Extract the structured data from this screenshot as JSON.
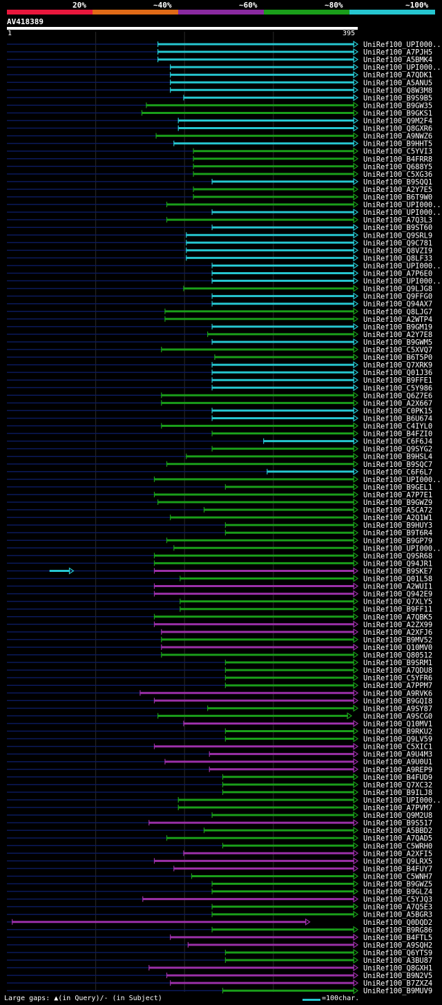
{
  "legend": [
    {
      "label": "20%",
      "color": "#e8173c"
    },
    {
      "label": "~40%",
      "color": "#e06a17"
    },
    {
      "label": "~60%",
      "color": "#8a2aa0"
    },
    {
      "label": "~80%",
      "color": "#1a9e1a"
    },
    {
      "label": "~100%",
      "color": "#26c6d0"
    }
  ],
  "query": {
    "name": "AV418389",
    "start": "1",
    "end": "395"
  },
  "colors": {
    "cyan": "#26c6d0",
    "green": "#1a9e1a",
    "purple": "#9b30a8",
    "navy": "#0b1a5c"
  },
  "footer": {
    "gaps_text": "Large gaps: ▲(in Query)/- (in Subject)",
    "scale_text": "=100char."
  },
  "hits": [
    {
      "name": "UniRef100_UPI000..",
      "start": 170,
      "end": 395,
      "color": "cyan"
    },
    {
      "name": "UniRef100_A7PJH5",
      "start": 170,
      "end": 395,
      "color": "cyan"
    },
    {
      "name": "UniRef100_A5BMK4",
      "start": 170,
      "end": 395,
      "color": "cyan"
    },
    {
      "name": "UniRef100_UPI000..",
      "start": 184,
      "end": 395,
      "color": "cyan"
    },
    {
      "name": "UniRef100_A7QDK1",
      "start": 184,
      "end": 395,
      "color": "cyan"
    },
    {
      "name": "UniRef100_A5ANU5",
      "start": 184,
      "end": 395,
      "color": "cyan"
    },
    {
      "name": "UniRef100_Q8W3M8",
      "start": 184,
      "end": 395,
      "color": "cyan"
    },
    {
      "name": "UniRef100_B9S9B5",
      "start": 199,
      "end": 395,
      "color": "cyan"
    },
    {
      "name": "UniRef100_B9GW35",
      "start": 157,
      "end": 395,
      "color": "green"
    },
    {
      "name": "UniRef100_B9GKS1",
      "start": 152,
      "end": 395,
      "color": "green"
    },
    {
      "name": "UniRef100_Q9M2F4",
      "start": 193,
      "end": 395,
      "color": "cyan"
    },
    {
      "name": "UniRef100_Q8GXR6",
      "start": 193,
      "end": 395,
      "color": "cyan"
    },
    {
      "name": "UniRef100_A9NWZ6",
      "start": 168,
      "end": 395,
      "color": "green"
    },
    {
      "name": "UniRef100_B9HHT5",
      "start": 188,
      "end": 395,
      "color": "cyan"
    },
    {
      "name": "UniRef100_C5YVI3",
      "start": 210,
      "end": 395,
      "color": "green"
    },
    {
      "name": "UniRef100_B4FRR8",
      "start": 210,
      "end": 395,
      "color": "green"
    },
    {
      "name": "UniRef100_Q688Y5",
      "start": 210,
      "end": 395,
      "color": "green"
    },
    {
      "name": "UniRef100_C5XG36",
      "start": 210,
      "end": 395,
      "color": "green"
    },
    {
      "name": "UniRef100_B9SQQ1",
      "start": 231,
      "end": 395,
      "color": "cyan"
    },
    {
      "name": "UniRef100_A2Y7E5",
      "start": 210,
      "end": 395,
      "color": "green"
    },
    {
      "name": "UniRef100_B6T9W0",
      "start": 210,
      "end": 395,
      "color": "green"
    },
    {
      "name": "UniRef100_UPI000..",
      "start": 180,
      "end": 395,
      "color": "green"
    },
    {
      "name": "UniRef100_UPI000..",
      "start": 231,
      "end": 395,
      "color": "cyan"
    },
    {
      "name": "UniRef100_A7Q3L3",
      "start": 180,
      "end": 395,
      "color": "green"
    },
    {
      "name": "UniRef100_B9ST60",
      "start": 231,
      "end": 395,
      "color": "cyan"
    },
    {
      "name": "UniRef100_Q9SRL9",
      "start": 202,
      "end": 395,
      "color": "cyan"
    },
    {
      "name": "UniRef100_Q9C781",
      "start": 202,
      "end": 395,
      "color": "cyan"
    },
    {
      "name": "UniRef100_Q8VZI9",
      "start": 202,
      "end": 395,
      "color": "cyan"
    },
    {
      "name": "UniRef100_Q8LF33",
      "start": 202,
      "end": 395,
      "color": "cyan"
    },
    {
      "name": "UniRef100_UPI000..",
      "start": 231,
      "end": 395,
      "color": "cyan"
    },
    {
      "name": "UniRef100_A7P6E0",
      "start": 231,
      "end": 395,
      "color": "cyan"
    },
    {
      "name": "UniRef100_UPI000..",
      "start": 231,
      "end": 395,
      "color": "cyan"
    },
    {
      "name": "UniRef100_Q9LJG8",
      "start": 199,
      "end": 395,
      "color": "green"
    },
    {
      "name": "UniRef100_Q9FFG0",
      "start": 231,
      "end": 395,
      "color": "cyan"
    },
    {
      "name": "UniRef100_Q94AX7",
      "start": 231,
      "end": 395,
      "color": "cyan"
    },
    {
      "name": "UniRef100_Q8LJG7",
      "start": 178,
      "end": 395,
      "color": "green"
    },
    {
      "name": "UniRef100_A2WTP4",
      "start": 178,
      "end": 395,
      "color": "green"
    },
    {
      "name": "UniRef100_B9GM19",
      "start": 231,
      "end": 395,
      "color": "cyan"
    },
    {
      "name": "UniRef100_A2Y7E8",
      "start": 226,
      "end": 395,
      "color": "green"
    },
    {
      "name": "UniRef100_B9GWM5",
      "start": 231,
      "end": 395,
      "color": "cyan"
    },
    {
      "name": "UniRef100_C5XVQ7",
      "start": 174,
      "end": 395,
      "color": "green"
    },
    {
      "name": "UniRef100_B6T5P0",
      "start": 234,
      "end": 395,
      "color": "green"
    },
    {
      "name": "UniRef100_Q7XRK9",
      "start": 231,
      "end": 395,
      "color": "cyan"
    },
    {
      "name": "UniRef100_Q01J36",
      "start": 231,
      "end": 395,
      "color": "cyan"
    },
    {
      "name": "UniRef100_B9FFE1",
      "start": 231,
      "end": 395,
      "color": "cyan"
    },
    {
      "name": "UniRef100_C5Y986",
      "start": 231,
      "end": 395,
      "color": "cyan"
    },
    {
      "name": "UniRef100_Q6Z7E6",
      "start": 174,
      "end": 395,
      "color": "green"
    },
    {
      "name": "UniRef100_A2X667",
      "start": 174,
      "end": 395,
      "color": "green"
    },
    {
      "name": "UniRef100_C0PK15",
      "start": 231,
      "end": 395,
      "color": "cyan"
    },
    {
      "name": "UniRef100_B6U674",
      "start": 231,
      "end": 395,
      "color": "cyan"
    },
    {
      "name": "UniRef100_C4IYL0",
      "start": 174,
      "end": 395,
      "color": "green"
    },
    {
      "name": "UniRef100_B4FZI0",
      "start": 231,
      "end": 395,
      "color": "green"
    },
    {
      "name": "UniRef100_C6F6J4",
      "start": 289,
      "end": 395,
      "color": "cyan"
    },
    {
      "name": "UniRef100_Q9SYG2",
      "start": 231,
      "end": 395,
      "color": "green"
    },
    {
      "name": "UniRef100_B9HSL4",
      "start": 202,
      "end": 395,
      "color": "green"
    },
    {
      "name": "UniRef100_B9SQC7",
      "start": 180,
      "end": 395,
      "color": "green"
    },
    {
      "name": "UniRef100_C6F6L7",
      "start": 293,
      "end": 395,
      "color": "cyan"
    },
    {
      "name": "UniRef100_UPI000..",
      "start": 166,
      "end": 395,
      "color": "green"
    },
    {
      "name": "UniRef100_B9GEL1",
      "start": 246,
      "end": 395,
      "color": "green"
    },
    {
      "name": "UniRef100_A7P7E1",
      "start": 166,
      "end": 395,
      "color": "green"
    },
    {
      "name": "UniRef100_B9GWZ9",
      "start": 170,
      "end": 395,
      "color": "green"
    },
    {
      "name": "UniRef100_A5CA72",
      "start": 222,
      "end": 395,
      "color": "green"
    },
    {
      "name": "UniRef100_A2Q1W1",
      "start": 184,
      "end": 395,
      "color": "green"
    },
    {
      "name": "UniRef100_B9HUY3",
      "start": 246,
      "end": 395,
      "color": "green"
    },
    {
      "name": "UniRef100_B9T6R4",
      "start": 246,
      "end": 395,
      "color": "green"
    },
    {
      "name": "UniRef100_B9GP79",
      "start": 180,
      "end": 395,
      "color": "green"
    },
    {
      "name": "UniRef100_UPI000..",
      "start": 188,
      "end": 395,
      "color": "green"
    },
    {
      "name": "UniRef100_Q9SR68",
      "start": 166,
      "end": 395,
      "color": "green"
    },
    {
      "name": "UniRef100_Q94JR1",
      "start": 166,
      "end": 395,
      "color": "green"
    },
    {
      "name": "UniRef100_B9SKE7",
      "start": 166,
      "end": 395,
      "color": "purple"
    },
    {
      "name": "UniRef100_Q01L58",
      "start": 195,
      "end": 395,
      "color": "green"
    },
    {
      "name": "UniRef100_A2WUI1",
      "start": 166,
      "end": 395,
      "color": "purple"
    },
    {
      "name": "UniRef100_Q942E9",
      "start": 166,
      "end": 395,
      "color": "purple"
    },
    {
      "name": "UniRef100_Q7XLY5",
      "start": 195,
      "end": 395,
      "color": "green"
    },
    {
      "name": "UniRef100_B9FF11",
      "start": 195,
      "end": 395,
      "color": "green"
    },
    {
      "name": "UniRef100_A7QBK5",
      "start": 166,
      "end": 395,
      "color": "green"
    },
    {
      "name": "UniRef100_A2ZX99",
      "start": 166,
      "end": 395,
      "color": "purple"
    },
    {
      "name": "UniRef100_A2XFJ6",
      "start": 174,
      "end": 395,
      "color": "purple"
    },
    {
      "name": "UniRef100_B9MV52",
      "start": 174,
      "end": 395,
      "color": "green"
    },
    {
      "name": "UniRef100_Q10MV0",
      "start": 174,
      "end": 395,
      "color": "purple"
    },
    {
      "name": "UniRef100_Q80512",
      "start": 174,
      "end": 395,
      "color": "green"
    },
    {
      "name": "UniRef100_B9SRM1",
      "start": 246,
      "end": 395,
      "color": "green"
    },
    {
      "name": "UniRef100_A7QDU8",
      "start": 246,
      "end": 395,
      "color": "green"
    },
    {
      "name": "UniRef100_C5YFR6",
      "start": 246,
      "end": 395,
      "color": "green"
    },
    {
      "name": "UniRef100_A7PPM7",
      "start": 246,
      "end": 395,
      "color": "green"
    },
    {
      "name": "UniRef100_A9RVK6",
      "start": 150,
      "end": 395,
      "color": "purple"
    },
    {
      "name": "UniRef100_B9GQI8",
      "start": 166,
      "end": 395,
      "color": "purple"
    },
    {
      "name": "UniRef100_A9SY87",
      "start": 226,
      "end": 395,
      "color": "green"
    },
    {
      "name": "UniRef100_A9SCG0",
      "start": 170,
      "end": 388,
      "color": "green"
    },
    {
      "name": "UniRef100_Q10MV1",
      "start": 199,
      "end": 395,
      "color": "purple"
    },
    {
      "name": "UniRef100_B9RKU2",
      "start": 246,
      "end": 395,
      "color": "green"
    },
    {
      "name": "UniRef100_Q9LV59",
      "start": 246,
      "end": 395,
      "color": "green"
    },
    {
      "name": "UniRef100_C5XIC1",
      "start": 166,
      "end": 395,
      "color": "purple"
    },
    {
      "name": "UniRef100_A9U4M3",
      "start": 228,
      "end": 395,
      "color": "purple"
    },
    {
      "name": "UniRef100_A9U0U1",
      "start": 178,
      "end": 395,
      "color": "purple"
    },
    {
      "name": "UniRef100_A9REP9",
      "start": 228,
      "end": 395,
      "color": "purple"
    },
    {
      "name": "UniRef100_B4FUD9",
      "start": 243,
      "end": 395,
      "color": "green"
    },
    {
      "name": "UniRef100_Q7XC32",
      "start": 243,
      "end": 395,
      "color": "green"
    },
    {
      "name": "UniRef100_B9ILJ8",
      "start": 243,
      "end": 395,
      "color": "green"
    },
    {
      "name": "UniRef100_UPI000..",
      "start": 193,
      "end": 395,
      "color": "green"
    },
    {
      "name": "UniRef100_A7PVM7",
      "start": 193,
      "end": 395,
      "color": "green"
    },
    {
      "name": "UniRef100_Q9M2U8",
      "start": 231,
      "end": 395,
      "color": "green"
    },
    {
      "name": "UniRef100_B9S517",
      "start": 160,
      "end": 395,
      "color": "purple"
    },
    {
      "name": "UniRef100_A5BBD2",
      "start": 222,
      "end": 395,
      "color": "green"
    },
    {
      "name": "UniRef100_A7QAD5",
      "start": 180,
      "end": 395,
      "color": "green"
    },
    {
      "name": "UniRef100_C5WRH0",
      "start": 243,
      "end": 395,
      "color": "green"
    },
    {
      "name": "UniRef100_A2XFI5",
      "start": 199,
      "end": 395,
      "color": "purple"
    },
    {
      "name": "UniRef100_Q9LRX5",
      "start": 166,
      "end": 395,
      "color": "purple"
    },
    {
      "name": "UniRef100_B4FUY7",
      "start": 188,
      "end": 395,
      "color": "purple"
    },
    {
      "name": "UniRef100_C5WNH7",
      "start": 208,
      "end": 395,
      "color": "green"
    },
    {
      "name": "UniRef100_B9GWZ5",
      "start": 231,
      "end": 395,
      "color": "green"
    },
    {
      "name": "UniRef100_B9GLZ4",
      "start": 231,
      "end": 395,
      "color": "green"
    },
    {
      "name": "UniRef100_C5YJQ3",
      "start": 153,
      "end": 395,
      "color": "purple"
    },
    {
      "name": "UniRef100_A7Q5E3",
      "start": 231,
      "end": 395,
      "color": "green"
    },
    {
      "name": "UniRef100_A5BGR3",
      "start": 231,
      "end": 395,
      "color": "green"
    },
    {
      "name": "UniRef100_Q0DQD2",
      "start": 6,
      "end": 341,
      "color": "purple"
    },
    {
      "name": "UniRef100_B9RG86",
      "start": 231,
      "end": 395,
      "color": "green"
    },
    {
      "name": "UniRef100_B4FTL5",
      "start": 184,
      "end": 395,
      "color": "purple"
    },
    {
      "name": "UniRef100_A9SQH2",
      "start": 204,
      "end": 395,
      "color": "purple"
    },
    {
      "name": "UniRef100_Q6YTS9",
      "start": 246,
      "end": 395,
      "color": "green"
    },
    {
      "name": "UniRef100_A3BU87",
      "start": 246,
      "end": 395,
      "color": "green"
    },
    {
      "name": "UniRef100_Q8GXH1",
      "start": 160,
      "end": 395,
      "color": "purple"
    },
    {
      "name": "UniRef100_B9N2V5",
      "start": 180,
      "end": 395,
      "color": "purple"
    },
    {
      "name": "UniRef100_B7ZXZ4",
      "start": 184,
      "end": 395,
      "color": "purple"
    },
    {
      "name": "UniRef100_B9MUV9",
      "start": 243,
      "end": 395,
      "color": "green"
    }
  ],
  "extra_segment": {
    "start": 48,
    "end": 75,
    "color": "cyan"
  }
}
